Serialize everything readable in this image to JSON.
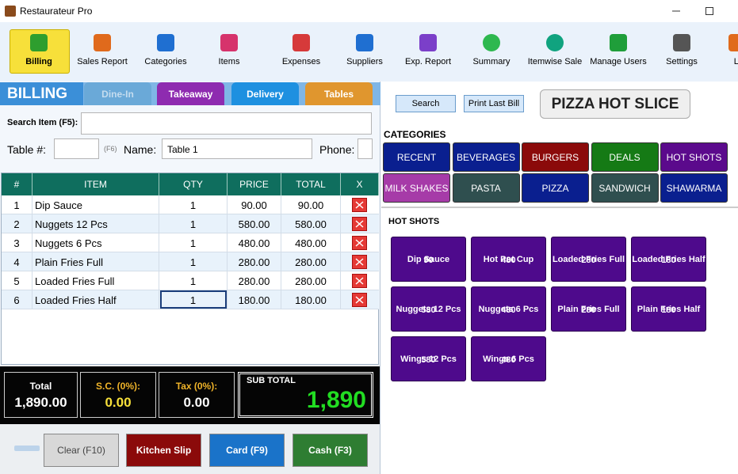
{
  "window": {
    "title": "Restaurateur Pro"
  },
  "toolbar": [
    "Billing",
    "Sales Report",
    "Categories",
    "Items",
    "Expenses",
    "Suppliers",
    "Exp. Report",
    "Summary",
    "Itemwise Sale",
    "Manage Users",
    "Settings",
    "Li"
  ],
  "billing": {
    "title": "BILLING",
    "tabs": [
      "Dine-In",
      "Takeaway",
      "Delivery",
      "Tables"
    ],
    "search_label": "Search Item (F5):",
    "table_label": "Table #:",
    "table_hint": "(F6)",
    "name_label": "Name:",
    "name_value": "Table 1",
    "phone_label": "Phone:"
  },
  "table": {
    "headers": [
      "#",
      "ITEM",
      "QTY",
      "PRICE",
      "TOTAL",
      "X"
    ],
    "rows": [
      [
        1,
        "Dip Sauce",
        1,
        "90.00",
        "90.00"
      ],
      [
        2,
        "Nuggets 12 Pcs",
        1,
        "580.00",
        "580.00"
      ],
      [
        3,
        "Nuggets 6 Pcs",
        1,
        "480.00",
        "480.00"
      ],
      [
        4,
        "Plain Fries Full",
        1,
        "280.00",
        "280.00"
      ],
      [
        5,
        "Loaded Fries Full",
        1,
        "280.00",
        "280.00"
      ],
      [
        6,
        "Loaded Fries Half",
        1,
        "180.00",
        "180.00"
      ]
    ]
  },
  "totals": {
    "total_label": "Total",
    "total_value": "1,890.00",
    "sc_label": "S.C. (0%):",
    "sc_value": "0.00",
    "tax_label": "Tax (0%):",
    "tax_value": "0.00",
    "subtotal_label": "SUB TOTAL",
    "subtotal_value": "1,890"
  },
  "actions": [
    "Clear (F10)",
    "Kitchen Slip",
    "Card (F9)",
    "Cash (F3)"
  ],
  "menu": {
    "buttons": [
      "Search",
      "Print Last Bill"
    ],
    "restaurant": "PIZZA HOT SLICE",
    "categories_title": "CATEGORIES",
    "categories": [
      "RECENT",
      "BEVERAGES",
      "BURGERS",
      "DEALS",
      "HOT SHOTS",
      "MILK SHAKES",
      "PASTA",
      "PIZZA",
      "SANDWICH",
      "SHAWARMA"
    ],
    "section_title": "HOT SHOTS",
    "items": [
      {
        "name": "Dip Sauce",
        "price": 90
      },
      {
        "name": "Hot Pot Cup",
        "price": 480
      },
      {
        "name": "Loaded Fries Full",
        "price": 280
      },
      {
        "name": "Loaded Fries Half",
        "price": 180
      },
      {
        "name": "Nuggets 12 Pcs",
        "price": 580
      },
      {
        "name": "Nuggets 6 Pcs",
        "price": 480
      },
      {
        "name": "Plain Fries Full",
        "price": 280
      },
      {
        "name": "Plain Fries Half",
        "price": 180
      },
      {
        "name": "Wings 12 Pcs",
        "price": 580
      },
      {
        "name": "Wings 6 Pcs",
        "price": 480
      }
    ]
  }
}
